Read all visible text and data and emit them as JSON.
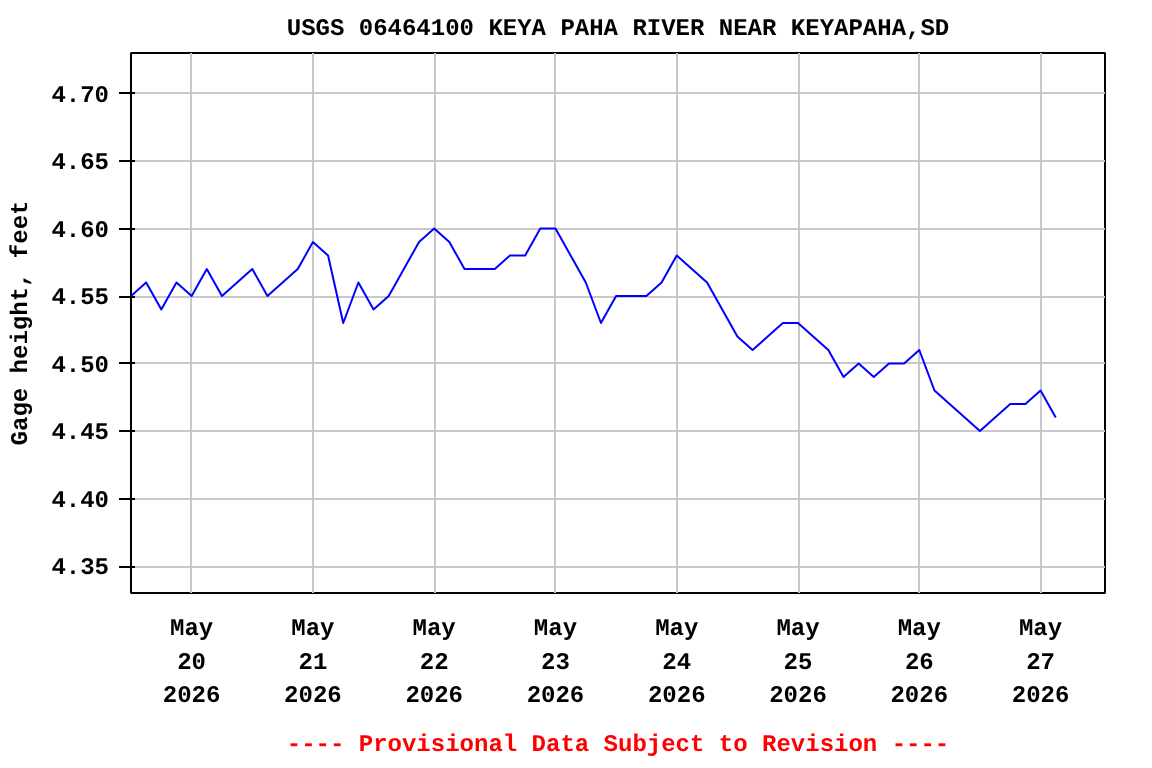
{
  "chart_data": {
    "type": "line",
    "title": "USGS 06464100 KEYA PAHA RIVER NEAR KEYAPAHA,SD",
    "ylabel": "Gage height, feet",
    "annotations": [
      "---- Provisional Data Subject to Revision ----"
    ],
    "x": [
      "2026-05-19T12:00",
      "2026-05-19T15:00",
      "2026-05-19T18:00",
      "2026-05-19T21:00",
      "2026-05-20T00:00",
      "2026-05-20T03:00",
      "2026-05-20T06:00",
      "2026-05-20T09:00",
      "2026-05-20T12:00",
      "2026-05-20T15:00",
      "2026-05-20T18:00",
      "2026-05-20T21:00",
      "2026-05-21T00:00",
      "2026-05-21T03:00",
      "2026-05-21T06:00",
      "2026-05-21T09:00",
      "2026-05-21T12:00",
      "2026-05-21T15:00",
      "2026-05-21T18:00",
      "2026-05-21T21:00",
      "2026-05-22T00:00",
      "2026-05-22T03:00",
      "2026-05-22T06:00",
      "2026-05-22T09:00",
      "2026-05-22T12:00",
      "2026-05-22T15:00",
      "2026-05-22T18:00",
      "2026-05-22T21:00",
      "2026-05-23T00:00",
      "2026-05-23T03:00",
      "2026-05-23T06:00",
      "2026-05-23T09:00",
      "2026-05-23T12:00",
      "2026-05-23T15:00",
      "2026-05-23T18:00",
      "2026-05-23T21:00",
      "2026-05-24T00:00",
      "2026-05-24T03:00",
      "2026-05-24T06:00",
      "2026-05-24T09:00",
      "2026-05-24T12:00",
      "2026-05-24T15:00",
      "2026-05-24T18:00",
      "2026-05-24T21:00",
      "2026-05-25T00:00",
      "2026-05-25T03:00",
      "2026-05-25T06:00",
      "2026-05-25T09:00",
      "2026-05-25T12:00",
      "2026-05-25T15:00",
      "2026-05-25T18:00",
      "2026-05-25T21:00",
      "2026-05-26T00:00",
      "2026-05-26T03:00",
      "2026-05-26T06:00",
      "2026-05-26T09:00",
      "2026-05-26T12:00",
      "2026-05-26T15:00",
      "2026-05-26T18:00",
      "2026-05-26T21:00",
      "2026-05-27T00:00",
      "2026-05-27T03:00"
    ],
    "series": [
      {
        "color": "#0000ff",
        "values": [
          4.55,
          4.56,
          4.54,
          4.56,
          4.55,
          4.57,
          4.55,
          4.56,
          4.57,
          4.55,
          4.56,
          4.57,
          4.59,
          4.58,
          4.53,
          4.56,
          4.54,
          4.55,
          4.57,
          4.59,
          4.6,
          4.59,
          4.57,
          4.57,
          4.57,
          4.58,
          4.58,
          4.6,
          4.6,
          4.58,
          4.56,
          4.53,
          4.55,
          4.55,
          4.55,
          4.56,
          4.58,
          4.57,
          4.56,
          4.54,
          4.52,
          4.51,
          4.52,
          4.53,
          4.53,
          4.52,
          4.51,
          4.49,
          4.5,
          4.49,
          4.5,
          4.5,
          4.51,
          4.48,
          4.47,
          4.46,
          4.45,
          4.46,
          4.47,
          4.47,
          4.48,
          4.46
        ]
      }
    ],
    "xlim": [
      "2026-05-19T12:00",
      "2026-05-27T12:45"
    ],
    "xticks": [
      {
        "value": "2026-05-20",
        "label": "May\n20\n2026"
      },
      {
        "value": "2026-05-21",
        "label": "May\n21\n2026"
      },
      {
        "value": "2026-05-22",
        "label": "May\n22\n2026"
      },
      {
        "value": "2026-05-23",
        "label": "May\n23\n2026"
      },
      {
        "value": "2026-05-24",
        "label": "May\n24\n2026"
      },
      {
        "value": "2026-05-25",
        "label": "May\n25\n2026"
      },
      {
        "value": "2026-05-26",
        "label": "May\n26\n2026"
      },
      {
        "value": "2026-05-27",
        "label": "May\n27\n2026"
      }
    ],
    "ylim": [
      4.33,
      4.73
    ],
    "yticks": [
      4.35,
      {
        "value": 4.4,
        "label": "4.40"
      },
      4.45,
      {
        "value": 4.5,
        "label": "4.50"
      },
      4.55,
      {
        "value": 4.6,
        "label": "4.60"
      },
      4.65,
      {
        "value": 4.7,
        "label": "4.70"
      }
    ],
    "grid": true
  }
}
